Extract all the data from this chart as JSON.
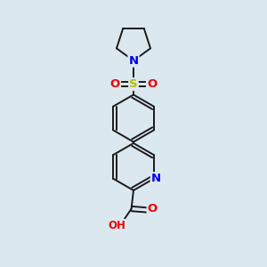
{
  "background_color": "#dce8f0",
  "bond_color": "#1a1a1a",
  "atom_colors": {
    "N": "#0000ee",
    "O": "#ee0000",
    "S": "#bbbb00",
    "C": "#1a1a1a"
  },
  "font_size_atom": 8.5,
  "figsize": [
    3.0,
    3.0
  ],
  "dpi": 100
}
